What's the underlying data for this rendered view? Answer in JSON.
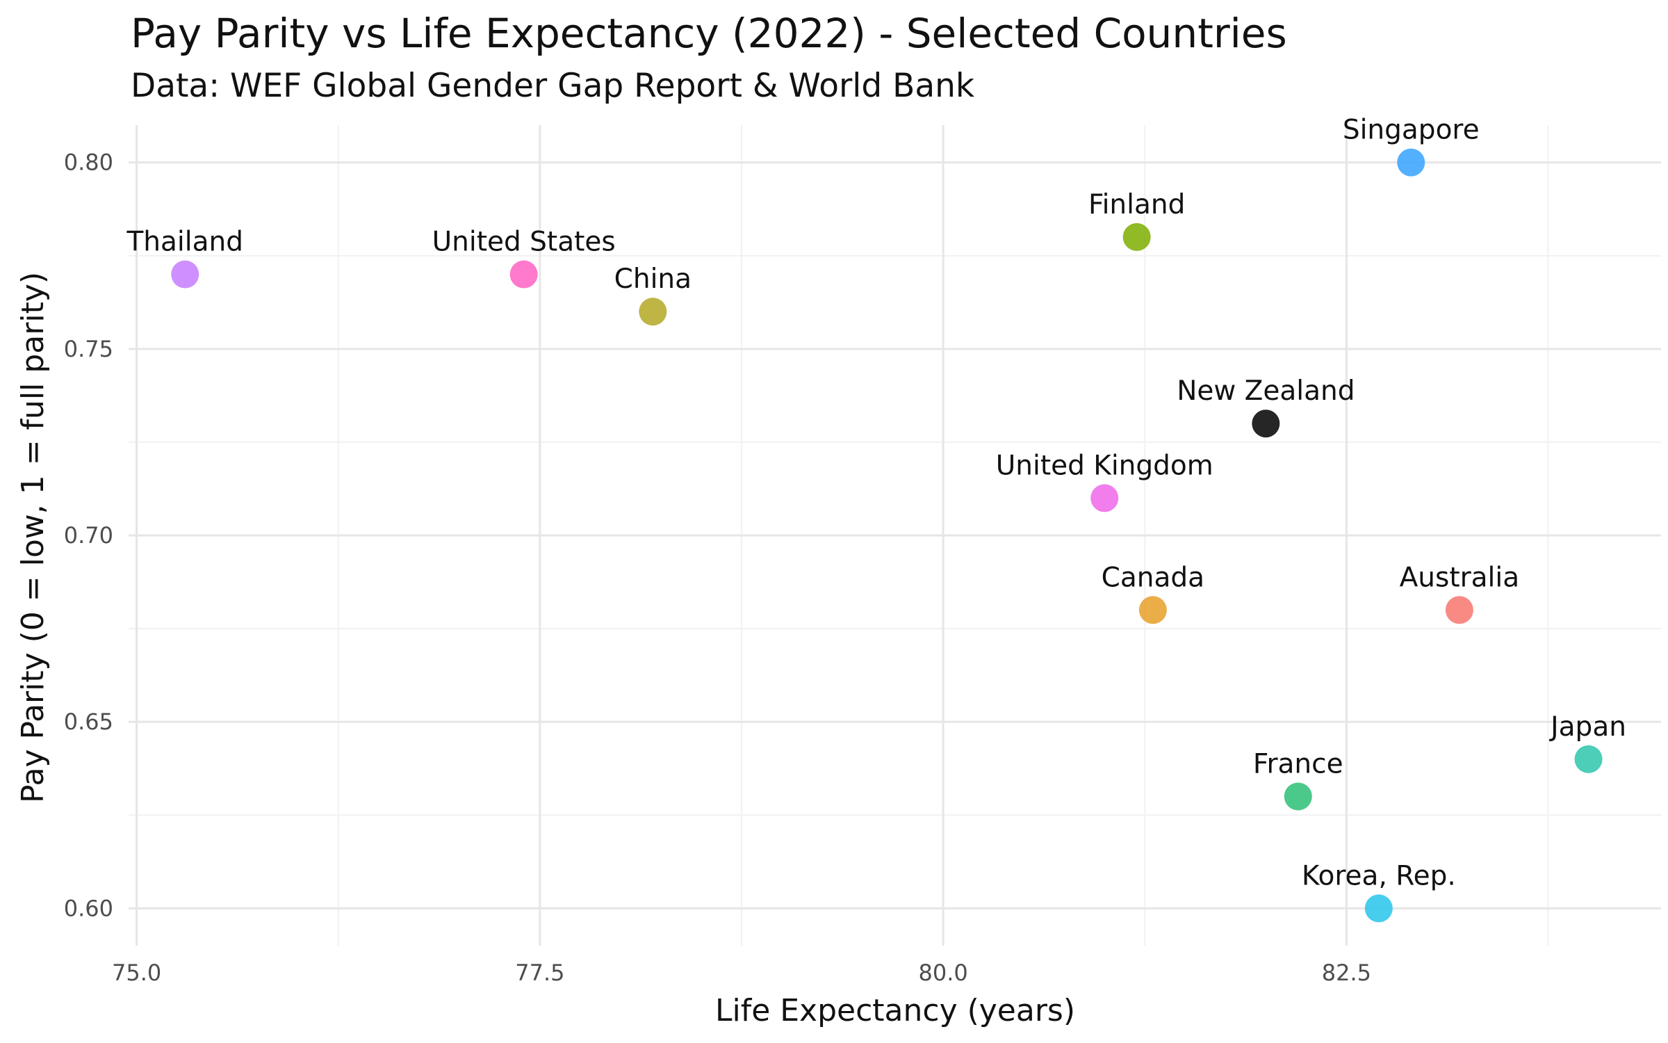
{
  "chart_data": {
    "type": "scatter",
    "title": "Pay Parity vs Life Expectancy (2022) - Selected Countries",
    "subtitle": "Data: WEF Global Gender Gap Report & World Bank",
    "xlabel": "Life Expectancy (years)",
    "ylabel": "Pay Parity (0 = low, 1 = full parity)",
    "xlim": [
      74.95,
      84.45
    ],
    "ylim": [
      0.59,
      0.81
    ],
    "x_ticks": [
      75.0,
      77.5,
      80.0,
      82.5
    ],
    "x_tick_labels": [
      "75.0",
      "77.5",
      "80.0",
      "82.5"
    ],
    "y_ticks": [
      0.6,
      0.65,
      0.7,
      0.75,
      0.8
    ],
    "y_tick_labels": [
      "0.60",
      "0.65",
      "0.70",
      "0.75",
      "0.80"
    ],
    "grid": true,
    "legend": "none",
    "points": [
      {
        "label": "Singapore",
        "x": 82.9,
        "y": 0.8,
        "color": "#35A2FF"
      },
      {
        "label": "Finland",
        "x": 81.2,
        "y": 0.78,
        "color": "#7CAE00"
      },
      {
        "label": "Thailand",
        "x": 75.3,
        "y": 0.77,
        "color": "#C77CFF"
      },
      {
        "label": "United States",
        "x": 77.4,
        "y": 0.77,
        "color": "#FF61C3"
      },
      {
        "label": "China",
        "x": 78.2,
        "y": 0.76,
        "color": "#B3A824"
      },
      {
        "label": "New Zealand",
        "x": 82.0,
        "y": 0.73,
        "color": "#000000"
      },
      {
        "label": "United Kingdom",
        "x": 81.0,
        "y": 0.71,
        "color": "#F066EA"
      },
      {
        "label": "Canada",
        "x": 81.3,
        "y": 0.68,
        "color": "#E69F27"
      },
      {
        "label": "Australia",
        "x": 83.2,
        "y": 0.68,
        "color": "#F8766D"
      },
      {
        "label": "Japan",
        "x": 84.0,
        "y": 0.64,
        "color": "#2DC5AB"
      },
      {
        "label": "France",
        "x": 82.2,
        "y": 0.63,
        "color": "#2BC076"
      },
      {
        "label": "Korea, Rep.",
        "x": 82.7,
        "y": 0.6,
        "color": "#27C4EB"
      }
    ]
  }
}
